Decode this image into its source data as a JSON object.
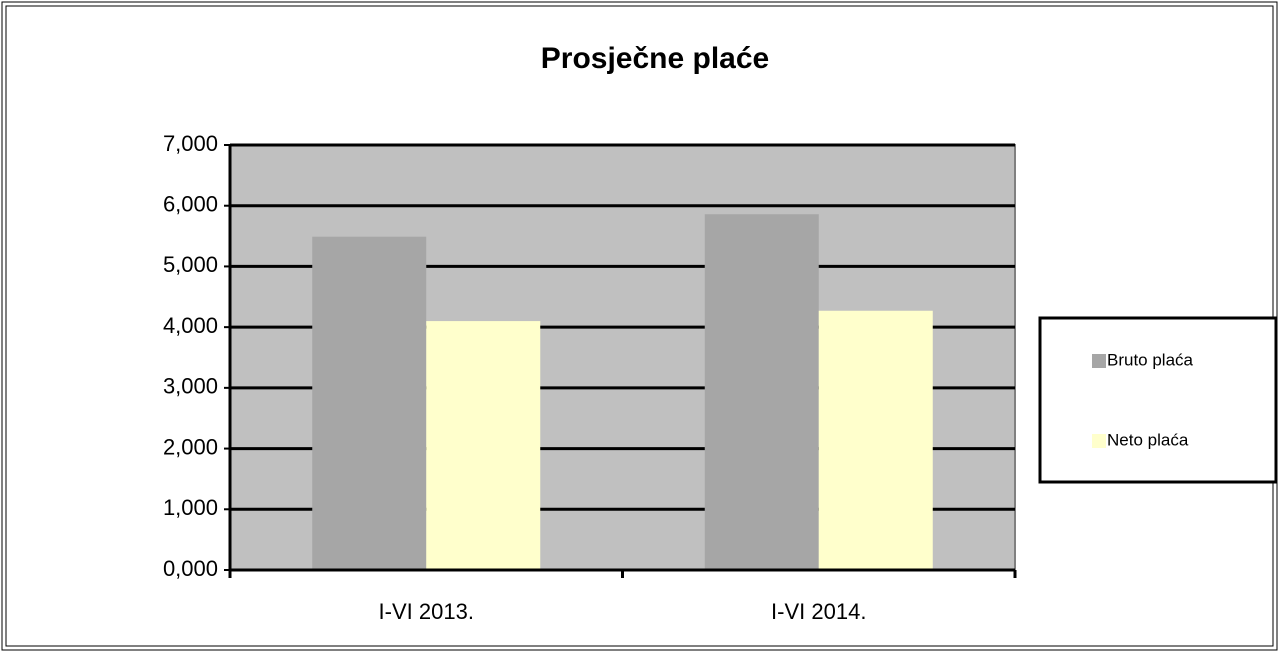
{
  "chart_data": {
    "type": "bar",
    "title": "Prosječne plaće",
    "categories": [
      "I-VI 2013.",
      "I-VI 2014."
    ],
    "series": [
      {
        "name": "Bruto plaća",
        "color": "#a6a6a6",
        "values": [
          5490,
          5860
        ]
      },
      {
        "name": "Neto plaća",
        "color": "#ffffcc",
        "values": [
          4100,
          4270
        ]
      }
    ],
    "ylim": [
      0,
      7000
    ],
    "yticks": [
      {
        "value": 0,
        "label": "0,000"
      },
      {
        "value": 1000,
        "label": "1,000"
      },
      {
        "value": 2000,
        "label": "2,000"
      },
      {
        "value": 3000,
        "label": "3,000"
      },
      {
        "value": 4000,
        "label": "4,000"
      },
      {
        "value": 5000,
        "label": "5,000"
      },
      {
        "value": 6000,
        "label": "6,000"
      },
      {
        "value": 7000,
        "label": "7,000"
      }
    ],
    "grid": true,
    "legend": "right"
  }
}
